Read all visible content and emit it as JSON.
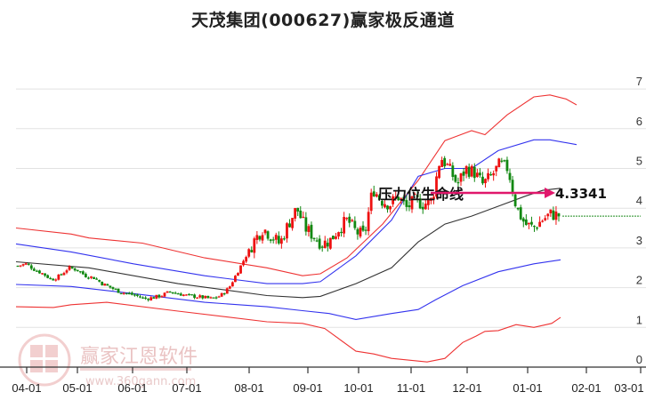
{
  "title": "天茂集团(000627)赢家极反通道",
  "watermark": {
    "brand": "赢家江恩软件",
    "url": "www.360gann.com",
    "logo_chars": [
      "江",
      "赢",
      "恩",
      "家"
    ]
  },
  "colors": {
    "up": "#ee1111",
    "down": "#118811",
    "outer_band": "#ee3333",
    "inner_band": "#3333ee",
    "middle": "#333333",
    "arrow": "#e0176b",
    "guide": "#1e8a1e",
    "grid": "#e2e2e2"
  },
  "chart_data": {
    "type": "candlestick",
    "title": "天茂集团(000627)赢家极反通道",
    "xlabel": "",
    "ylabel": "",
    "ylim": [
      0,
      7
    ],
    "yticks": [
      "0",
      "1",
      "2",
      "3",
      "4",
      "5",
      "6",
      "7"
    ],
    "xticks": [
      "04-01",
      "05-01",
      "06-01",
      "07-01",
      "08-01",
      "09-01",
      "10-01",
      "11-01",
      "12-01",
      "01-01",
      "02-01",
      "03-01"
    ],
    "grid": true,
    "annotation": {
      "label": "压力位生命线",
      "value": "4.3341",
      "level": 4.3341
    },
    "guide_line_level": 3.8,
    "series": [
      {
        "name": "upper_outer",
        "color": "red",
        "points": [
          [
            0,
            3.5
          ],
          [
            62,
            3.35
          ],
          [
            82,
            3.25
          ],
          [
            142,
            3.12
          ],
          [
            212,
            2.75
          ],
          [
            282,
            2.5
          ],
          [
            322,
            2.3
          ],
          [
            342,
            2.35
          ],
          [
            372,
            2.75
          ],
          [
            412,
            3.6
          ],
          [
            452,
            4.7
          ],
          [
            482,
            5.7
          ],
          [
            512,
            5.95
          ],
          [
            527,
            5.85
          ],
          [
            552,
            6.35
          ],
          [
            582,
            6.8
          ],
          [
            600,
            6.85
          ],
          [
            618,
            6.75
          ],
          [
            630,
            6.6
          ]
        ]
      },
      {
        "name": "upper_inner",
        "color": "blue",
        "points": [
          [
            0,
            3.1
          ],
          [
            62,
            2.9
          ],
          [
            132,
            2.6
          ],
          [
            212,
            2.3
          ],
          [
            282,
            2.1
          ],
          [
            322,
            2.1
          ],
          [
            342,
            2.15
          ],
          [
            382,
            2.8
          ],
          [
            422,
            3.7
          ],
          [
            452,
            4.8
          ],
          [
            482,
            5.0
          ],
          [
            512,
            5.0
          ],
          [
            542,
            5.45
          ],
          [
            582,
            5.72
          ],
          [
            600,
            5.72
          ],
          [
            630,
            5.6
          ]
        ]
      },
      {
        "name": "middle",
        "color": "black",
        "points": [
          [
            0,
            2.65
          ],
          [
            82,
            2.5
          ],
          [
            182,
            2.1
          ],
          [
            282,
            1.8
          ],
          [
            322,
            1.75
          ],
          [
            342,
            1.78
          ],
          [
            382,
            2.1
          ],
          [
            422,
            2.5
          ],
          [
            452,
            3.15
          ],
          [
            482,
            3.6
          ],
          [
            512,
            3.8
          ],
          [
            542,
            4.05
          ],
          [
            572,
            4.3
          ],
          [
            592,
            4.45
          ],
          [
            612,
            4.5
          ]
        ]
      },
      {
        "name": "lower_inner",
        "color": "blue",
        "points": [
          [
            0,
            2.08
          ],
          [
            62,
            2.03
          ],
          [
            132,
            1.85
          ],
          [
            212,
            1.63
          ],
          [
            282,
            1.52
          ],
          [
            322,
            1.42
          ],
          [
            352,
            1.35
          ],
          [
            382,
            1.2
          ],
          [
            422,
            1.35
          ],
          [
            452,
            1.45
          ],
          [
            472,
            1.7
          ],
          [
            502,
            2.05
          ],
          [
            542,
            2.4
          ],
          [
            582,
            2.6
          ],
          [
            612,
            2.7
          ]
        ]
      },
      {
        "name": "lower_outer",
        "color": "red",
        "points": [
          [
            0,
            1.52
          ],
          [
            42,
            1.5
          ],
          [
            62,
            1.57
          ],
          [
            102,
            1.63
          ],
          [
            182,
            1.41
          ],
          [
            282,
            1.14
          ],
          [
            322,
            1.1
          ],
          [
            347,
            0.97
          ],
          [
            382,
            0.4
          ],
          [
            402,
            0.33
          ],
          [
            422,
            0.22
          ],
          [
            462,
            0.13
          ],
          [
            482,
            0.22
          ],
          [
            502,
            0.62
          ],
          [
            517,
            0.78
          ],
          [
            527,
            0.9
          ],
          [
            542,
            0.92
          ],
          [
            562,
            1.07
          ],
          [
            582,
            1.0
          ],
          [
            602,
            1.1
          ],
          [
            612,
            1.25
          ]
        ]
      }
    ],
    "candles_note": "Approximate daily candles from 04-01 to mid 01; price ~2.6 → low ~1.7 (Jul–Aug) → high ~5.4 (Dec) → ~3.8 (Jan)",
    "price_path": [
      2.55,
      2.6,
      2.45,
      2.35,
      2.2,
      2.3,
      2.5,
      2.45,
      2.3,
      2.25,
      2.1,
      2.0,
      1.9,
      1.85,
      1.8,
      1.72,
      1.75,
      1.8,
      1.9,
      1.85,
      1.8,
      1.78,
      1.75,
      1.72,
      1.8,
      2.0,
      2.4,
      2.8,
      3.2,
      3.5,
      3.3,
      3.1,
      3.6,
      4.0,
      3.5,
      3.3,
      3.1,
      3.2,
      3.5,
      3.7,
      3.4,
      3.3,
      4.5,
      4.2,
      4.1,
      4.3,
      4.0,
      4.2,
      4.1,
      4.2,
      5.3,
      5.0,
      4.6,
      5.0,
      4.9,
      4.6,
      4.8,
      5.1,
      5.0,
      4.0,
      3.6,
      3.5,
      3.7,
      3.85,
      3.82
    ]
  },
  "axis": {
    "y_labels": [
      "7",
      "6",
      "5",
      "4",
      "3",
      "2",
      "1",
      "0"
    ],
    "x_labels": [
      "04-01",
      "05-01",
      "06-01",
      "07-01",
      "08-01",
      "09-01",
      "10-01",
      "11-01",
      "12-01",
      "01-01",
      "02-01",
      "03-01"
    ]
  }
}
